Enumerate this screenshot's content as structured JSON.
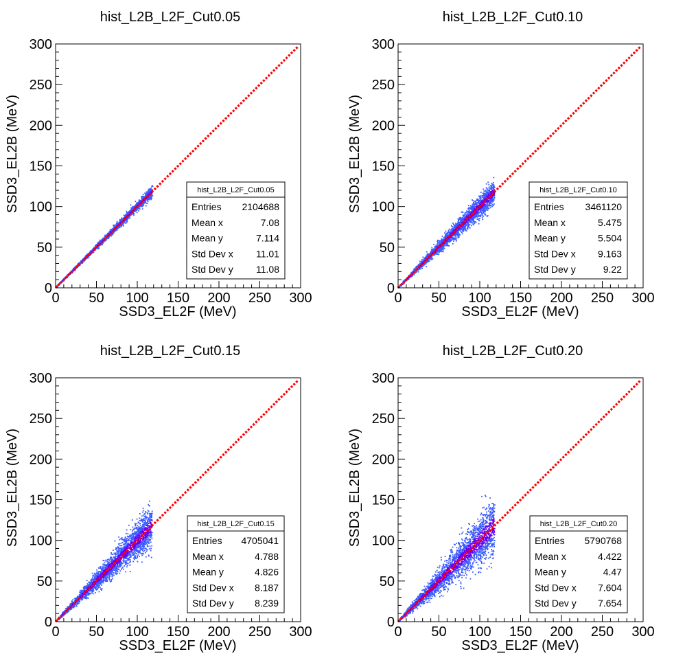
{
  "chart_data": [
    {
      "type": "heatmap",
      "title": "hist_L2B_L2F_Cut0.05",
      "xlabel": "SSD3_EL2F (MeV)",
      "ylabel": "SSD3_EL2B (MeV)",
      "xlim": [
        0,
        300
      ],
      "ylim": [
        0,
        300
      ],
      "x_ticks": [
        "0",
        "50",
        "100",
        "150",
        "200",
        "250",
        "300"
      ],
      "y_ticks": [
        "0",
        "50",
        "100",
        "150",
        "200",
        "250",
        "300"
      ],
      "grid": false,
      "band": {
        "x_max": 118,
        "spread": 0.025
      },
      "reference_line": {
        "x": [
          0,
          297
        ],
        "y": [
          0,
          297
        ],
        "color": "#ff0000",
        "style": "dotted"
      },
      "stats": {
        "name": "hist_L2B_L2F_Cut0.05",
        "rows": [
          {
            "label": "Entries",
            "value": "2104688"
          },
          {
            "label": "Mean x",
            "value": "7.08"
          },
          {
            "label": "Mean y",
            "value": "7.114"
          },
          {
            "label": "Std Dev x",
            "value": "11.01"
          },
          {
            "label": "Std Dev y",
            "value": "11.08"
          }
        ]
      }
    },
    {
      "type": "heatmap",
      "title": "hist_L2B_L2F_Cut0.10",
      "xlabel": "SSD3_EL2F (MeV)",
      "ylabel": "SSD3_EL2B (MeV)",
      "xlim": [
        0,
        300
      ],
      "ylim": [
        0,
        300
      ],
      "x_ticks": [
        "0",
        "50",
        "100",
        "150",
        "200",
        "250",
        "300"
      ],
      "y_ticks": [
        "0",
        "50",
        "100",
        "150",
        "200",
        "250",
        "300"
      ],
      "grid": false,
      "band": {
        "x_max": 118,
        "spread": 0.07
      },
      "reference_line": {
        "x": [
          0,
          297
        ],
        "y": [
          0,
          297
        ],
        "color": "#ff0000",
        "style": "dotted"
      },
      "stats": {
        "name": "hist_L2B_L2F_Cut0.10",
        "rows": [
          {
            "label": "Entries",
            "value": "3461120"
          },
          {
            "label": "Mean x",
            "value": "5.475"
          },
          {
            "label": "Mean y",
            "value": "5.504"
          },
          {
            "label": "Std Dev x",
            "value": "9.163"
          },
          {
            "label": "Std Dev y",
            "value": "9.22"
          }
        ]
      }
    },
    {
      "type": "heatmap",
      "title": "hist_L2B_L2F_Cut0.15",
      "xlabel": "SSD3_EL2F (MeV)",
      "ylabel": "SSD3_EL2B (MeV)",
      "xlim": [
        0,
        300
      ],
      "ylim": [
        0,
        300
      ],
      "x_ticks": [
        "0",
        "50",
        "100",
        "150",
        "200",
        "250",
        "300"
      ],
      "y_ticks": [
        "0",
        "50",
        "100",
        "150",
        "200",
        "250",
        "300"
      ],
      "grid": false,
      "band": {
        "x_max": 118,
        "spread": 0.11
      },
      "reference_line": {
        "x": [
          0,
          297
        ],
        "y": [
          0,
          297
        ],
        "color": "#ff0000",
        "style": "dotted"
      },
      "stats": {
        "name": "hist_L2B_L2F_Cut0.15",
        "rows": [
          {
            "label": "Entries",
            "value": "4705041"
          },
          {
            "label": "Mean x",
            "value": "4.788"
          },
          {
            "label": "Mean y",
            "value": "4.826"
          },
          {
            "label": "Std Dev x",
            "value": "8.187"
          },
          {
            "label": "Std Dev y",
            "value": "8.239"
          }
        ]
      }
    },
    {
      "type": "heatmap",
      "title": "hist_L2B_L2F_Cut0.20",
      "xlabel": "SSD3_EL2F (MeV)",
      "ylabel": "SSD3_EL2B (MeV)",
      "xlim": [
        0,
        300
      ],
      "ylim": [
        0,
        300
      ],
      "x_ticks": [
        "0",
        "50",
        "100",
        "150",
        "200",
        "250",
        "300"
      ],
      "y_ticks": [
        "0",
        "50",
        "100",
        "150",
        "200",
        "250",
        "300"
      ],
      "grid": false,
      "band": {
        "x_max": 118,
        "spread": 0.15
      },
      "reference_line": {
        "x": [
          0,
          297
        ],
        "y": [
          0,
          297
        ],
        "color": "#ff0000",
        "style": "dotted"
      },
      "stats": {
        "name": "hist_L2B_L2F_Cut0.20",
        "rows": [
          {
            "label": "Entries",
            "value": "5790768"
          },
          {
            "label": "Mean x",
            "value": "4.422"
          },
          {
            "label": "Mean y",
            "value": "4.47"
          },
          {
            "label": "Std Dev x",
            "value": "7.604"
          },
          {
            "label": "Std Dev y",
            "value": "7.654"
          }
        ]
      }
    }
  ],
  "colors": {
    "band_core": "#6a00f0",
    "band_outer": "#3b5bff",
    "reference_line": "#ff0000",
    "axis": "#000000"
  }
}
